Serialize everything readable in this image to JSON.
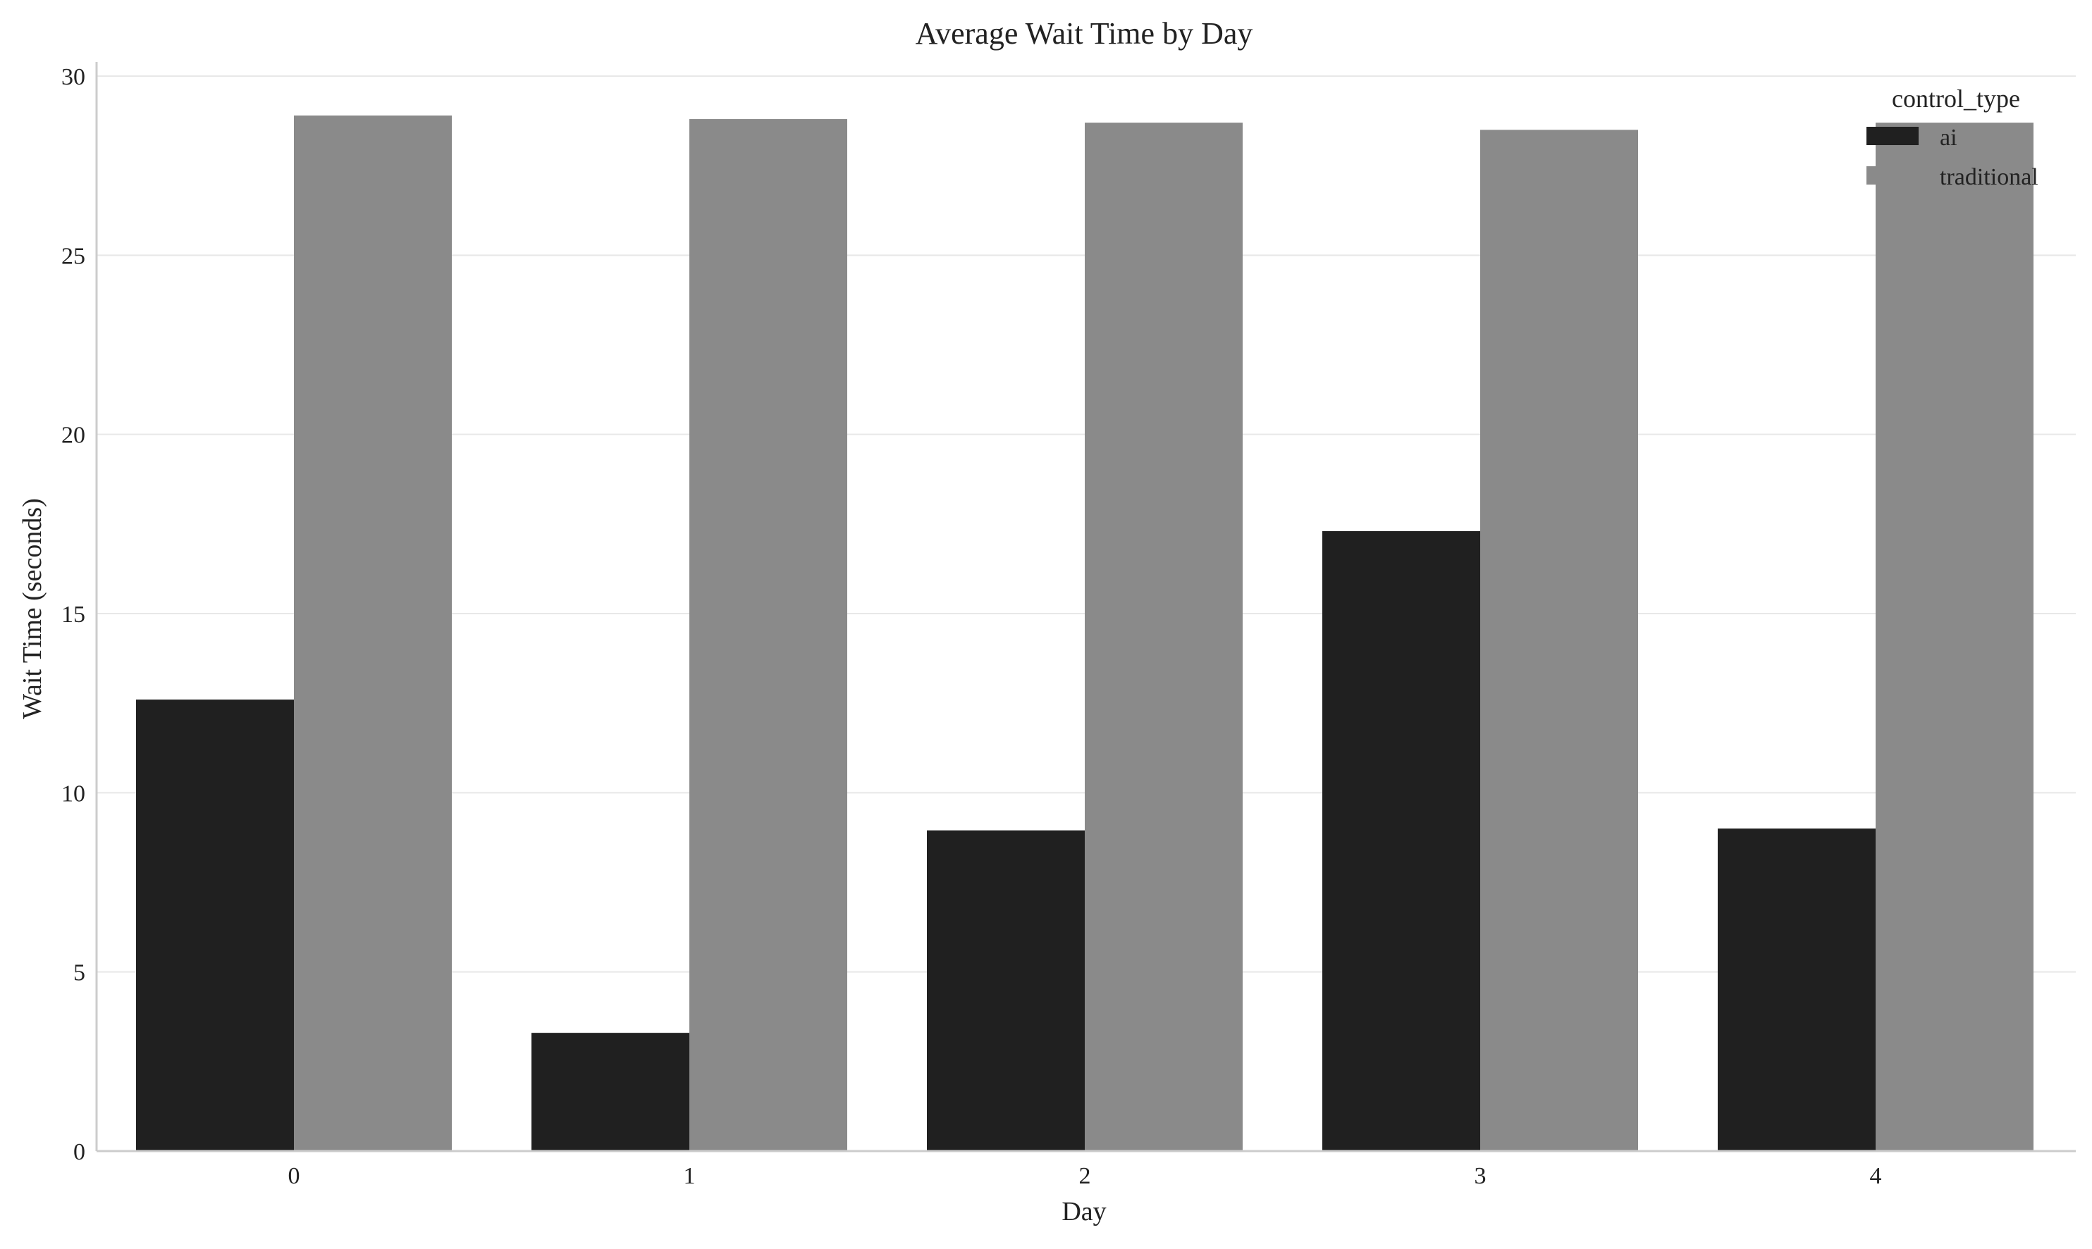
{
  "chart_data": {
    "type": "bar",
    "title": "Average Wait Time by Day",
    "xlabel": "Day",
    "ylabel": "Wait Time (seconds)",
    "categories": [
      "0",
      "1",
      "2",
      "3",
      "4"
    ],
    "series": [
      {
        "name": "ai",
        "values": [
          12.6,
          3.3,
          8.95,
          17.3,
          9.0
        ],
        "color": "#202020"
      },
      {
        "name": "traditional",
        "values": [
          28.9,
          28.8,
          28.7,
          28.5,
          28.7
        ],
        "color": "#8a8a8a"
      }
    ],
    "ylim": [
      0,
      30
    ],
    "yticks": [
      0,
      5,
      10,
      15,
      20,
      25,
      30
    ],
    "grid": true,
    "legend": {
      "title": "control_type",
      "position": "top-right"
    }
  }
}
